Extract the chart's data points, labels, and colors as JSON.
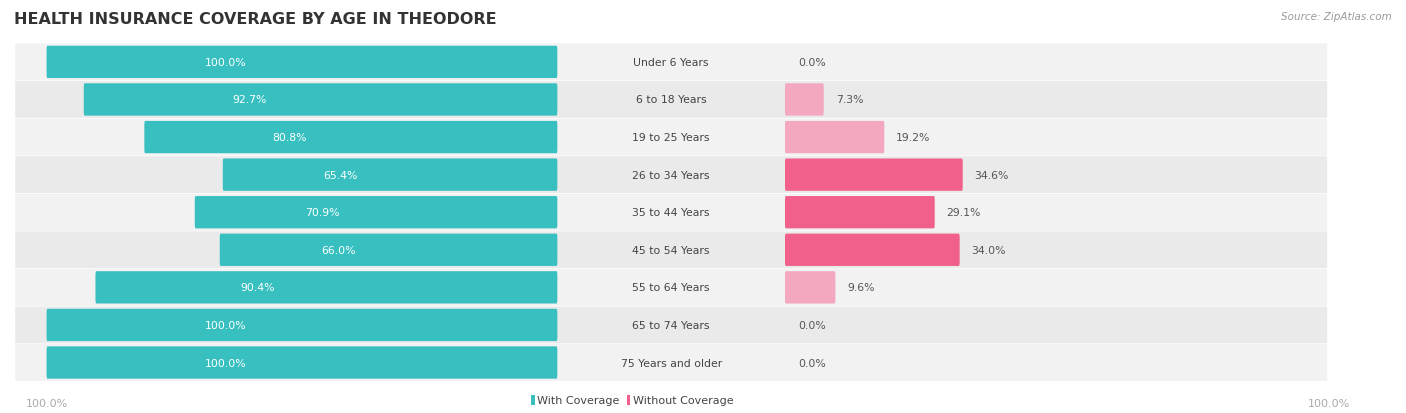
{
  "title": "HEALTH INSURANCE COVERAGE BY AGE IN THEODORE",
  "source": "Source: ZipAtlas.com",
  "categories": [
    "Under 6 Years",
    "6 to 18 Years",
    "19 to 25 Years",
    "26 to 34 Years",
    "35 to 44 Years",
    "45 to 54 Years",
    "55 to 64 Years",
    "65 to 74 Years",
    "75 Years and older"
  ],
  "with_coverage": [
    100.0,
    92.7,
    80.8,
    65.4,
    70.9,
    66.0,
    90.4,
    100.0,
    100.0
  ],
  "without_coverage": [
    0.0,
    7.3,
    19.2,
    34.6,
    29.1,
    34.0,
    9.6,
    0.0,
    0.0
  ],
  "color_with": "#38bfc0",
  "color_without_strong": "#f0608a",
  "color_without_light": "#f4a8c0",
  "row_bg_odd": "#f0f0f0",
  "row_bg_even": "#e8e8e8",
  "title_color": "#333333",
  "source_color": "#999999",
  "bar_text_color": "#ffffff",
  "outer_text_color": "#555555",
  "bottom_label_color": "#aaaaaa",
  "legend_with": "With Coverage",
  "legend_without": "Without Coverage"
}
